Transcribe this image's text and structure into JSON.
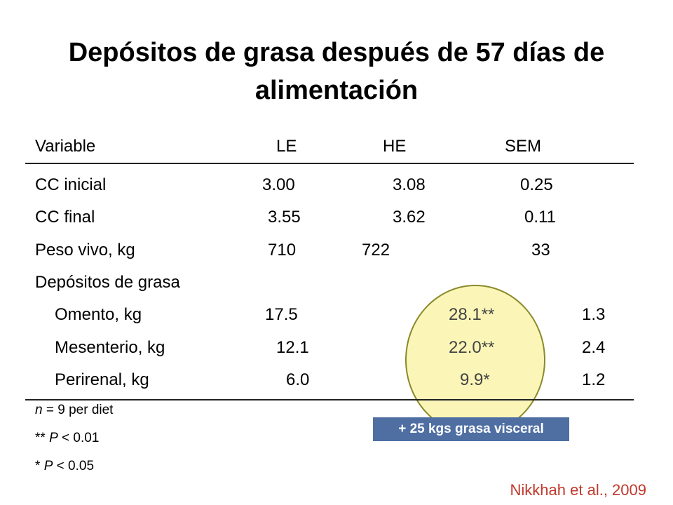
{
  "title": "Depósitos de grasa después de 57 días de alimentación",
  "headers": {
    "variable": "Variable",
    "le": "LE",
    "he": "HE",
    "sem": "SEM"
  },
  "rows": [
    {
      "label": "CC inicial",
      "le": "3.00",
      "he": "3.08",
      "sem": "0.25"
    },
    {
      "label": "CC final",
      "le": "3.55",
      "he": "3.62",
      "sem": "0.11"
    },
    {
      "label": "Peso vivo, kg",
      "le": "710",
      "he": "722",
      "sem": "33"
    },
    {
      "label": "Depósitos de grasa"
    },
    {
      "label": "Omento, kg",
      "le": "17.5",
      "he": "28.1**",
      "sem": "1.3"
    },
    {
      "label": "Mesenterio, kg",
      "le": "12.1",
      "he": "22.0**",
      "sem": "2.4"
    },
    {
      "label": "Perirenal, kg",
      "le": "6.0",
      "he": "9.9*",
      "sem": "1.2"
    }
  ],
  "notes": {
    "n_symbol": "n",
    "n_rest": " = 9 per diet",
    "p01_prefix": "** ",
    "p_symbol": "P",
    "p01_rest": " < 0.01",
    "p05_prefix": "* ",
    "p05_rest": " < 0.05"
  },
  "callout": "+ 25 kgs grasa visceral",
  "citation": "Nikkhah et al., 2009",
  "colors": {
    "highlight_fill": "#fbf6b8",
    "callout_bg": "#4f6fa3",
    "citation": "#c0392b"
  }
}
